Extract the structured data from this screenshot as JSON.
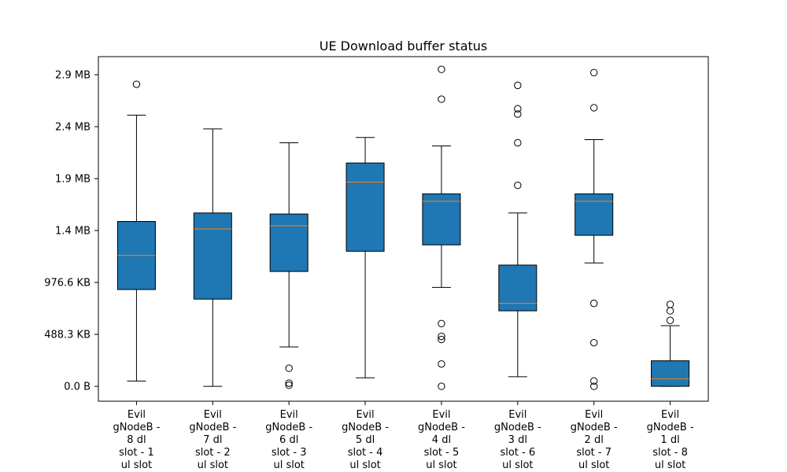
{
  "colors": {
    "box_fill": "#1f77b4",
    "median": "#ff7f0e",
    "line": "#000000",
    "background": "#ffffff"
  },
  "chart_data": {
    "type": "box",
    "title": "UE Download buffer status",
    "xlabel": "",
    "ylabel": "",
    "y_unit": "MB",
    "ylim": [
      -0.14,
      3.1
    ],
    "grid": false,
    "yticks": [
      {
        "value": 0.0,
        "label": "0.0 B"
      },
      {
        "value": 0.4883,
        "label": "488.3 KB"
      },
      {
        "value": 0.9766,
        "label": "976.6 KB"
      },
      {
        "value": 1.4648,
        "label": "1.4 MB"
      },
      {
        "value": 1.9531,
        "label": "1.9 MB"
      },
      {
        "value": 2.4414,
        "label": "2.4 MB"
      },
      {
        "value": 2.9297,
        "label": "2.9 MB"
      }
    ],
    "categories": [
      [
        "Evil",
        "gNodeB -",
        "8 dl",
        "slot - 1",
        "ul slot"
      ],
      [
        "Evil",
        "gNodeB -",
        "7 dl",
        "slot - 2",
        "ul slot"
      ],
      [
        "Evil",
        "gNodeB -",
        "6 dl",
        "slot - 3",
        "ul slot"
      ],
      [
        "Evil",
        "gNodeB -",
        "5 dl",
        "slot - 4",
        "ul slot"
      ],
      [
        "Evil",
        "gNodeB -",
        "4 dl",
        "slot - 5",
        "ul slot"
      ],
      [
        "Evil",
        "gNodeB -",
        "3 dl",
        "slot - 6",
        "ul slot"
      ],
      [
        "Evil",
        "gNodeB -",
        "2 dl",
        "slot - 7",
        "ul slot"
      ],
      [
        "Evil",
        "gNodeB -",
        "1 dl",
        "slot - 8",
        "ul slot"
      ]
    ],
    "boxes": [
      {
        "whisker_low": 0.05,
        "q1": 0.91,
        "median": 1.23,
        "q3": 1.55,
        "whisker_high": 2.55,
        "outliers": [
          2.84
        ]
      },
      {
        "whisker_low": 0.0,
        "q1": 0.82,
        "median": 1.48,
        "q3": 1.63,
        "whisker_high": 2.42,
        "outliers": []
      },
      {
        "whisker_low": 0.37,
        "q1": 1.08,
        "median": 1.51,
        "q3": 1.62,
        "whisker_high": 2.29,
        "outliers": [
          0.17,
          0.03,
          0.01
        ]
      },
      {
        "whisker_low": 0.08,
        "q1": 1.27,
        "median": 1.92,
        "q3": 2.1,
        "whisker_high": 2.34,
        "outliers": []
      },
      {
        "whisker_low": 0.93,
        "q1": 1.33,
        "median": 1.74,
        "q3": 1.81,
        "whisker_high": 2.26,
        "outliers": [
          2.98,
          2.7,
          0.59,
          0.47,
          0.44,
          0.21,
          0.0
        ]
      },
      {
        "whisker_low": 0.09,
        "q1": 0.71,
        "median": 0.78,
        "q3": 1.14,
        "whisker_high": 1.63,
        "outliers": [
          2.83,
          2.61,
          2.56,
          2.29,
          1.89
        ]
      },
      {
        "whisker_low": 1.16,
        "q1": 1.42,
        "median": 1.74,
        "q3": 1.81,
        "whisker_high": 2.32,
        "outliers": [
          2.95,
          2.62,
          0.78,
          0.41,
          0.05,
          0.0
        ]
      },
      {
        "whisker_low": 0.0,
        "q1": 0.0,
        "median": 0.07,
        "q3": 0.24,
        "whisker_high": 0.57,
        "outliers": [
          0.77,
          0.71,
          0.62
        ]
      }
    ]
  }
}
